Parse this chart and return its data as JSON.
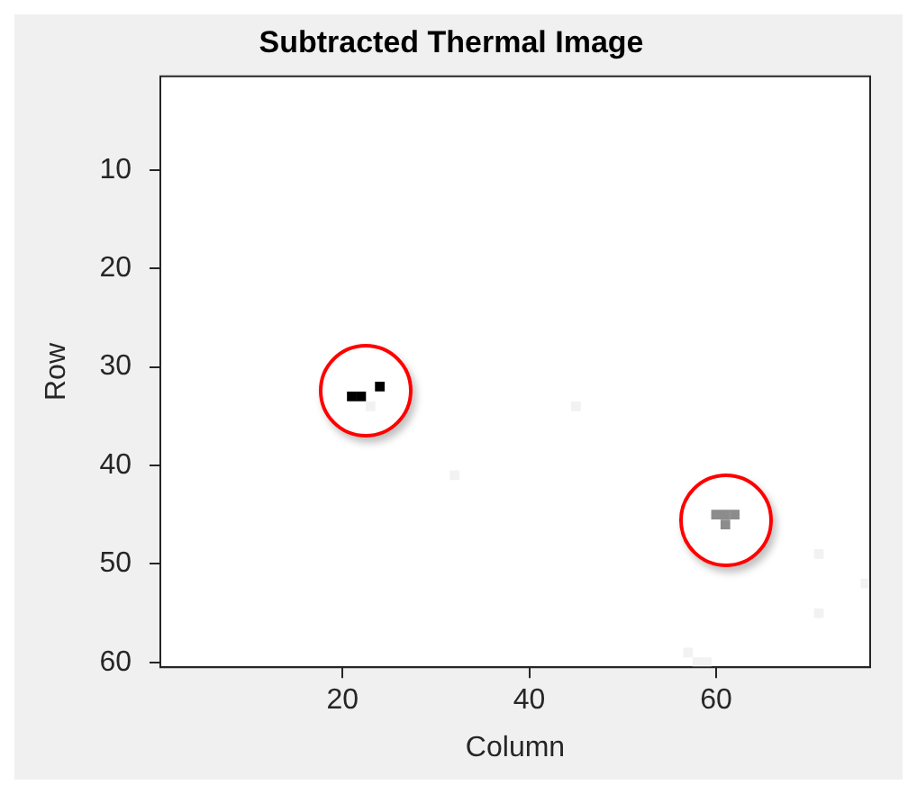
{
  "chart_data": {
    "type": "scatter",
    "title": "Subtracted Thermal Image",
    "xlabel": "Column",
    "ylabel": "Row",
    "marker": "square",
    "grid": false,
    "legend": false,
    "xlim": [
      0.5,
      76.5
    ],
    "xticks": [
      20,
      40,
      60
    ],
    "ylim": [
      60.5,
      0.5
    ],
    "yticks": [
      10,
      20,
      30,
      40,
      50,
      60
    ],
    "series": [
      {
        "color": "#000000",
        "x": [
          21,
          22,
          24
        ],
        "values": [
          33,
          33,
          32
        ]
      },
      {
        "color": "#8c8c8c",
        "x": [
          60,
          61,
          62,
          61
        ],
        "values": [
          45,
          45,
          45,
          46
        ]
      },
      {
        "color": "#f2f2f2",
        "x": [
          45,
          32,
          71,
          76,
          71,
          57,
          58,
          59,
          23
        ],
        "values": [
          34,
          41,
          49,
          52,
          55,
          59,
          60,
          60,
          34
        ]
      }
    ]
  }
}
